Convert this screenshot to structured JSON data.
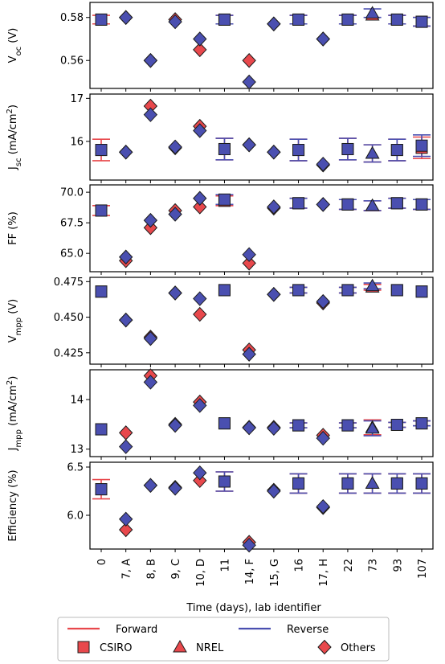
{
  "colors": {
    "forward": "#e8484c",
    "reverse": "#4a4fb0",
    "marker_edge": "#1c1c1c",
    "legend_border": "#bbbbbb"
  },
  "chart_data": {
    "type": "scatter",
    "xlabel": "Time (days), lab identifier",
    "categories": [
      "0",
      "7, A",
      "8, B",
      "9, C",
      "10, D",
      "11",
      "14, F",
      "15, G",
      "16",
      "17, H",
      "22",
      "73",
      "93",
      "107"
    ],
    "marker_by_category": [
      "square",
      "diamond",
      "diamond",
      "diamond",
      "diamond",
      "square",
      "diamond",
      "diamond",
      "square",
      "diamond",
      "square",
      "triangle",
      "square",
      "square"
    ],
    "legend": {
      "lines": [
        "Forward",
        "Reverse"
      ],
      "markers": [
        {
          "label": "CSIRO",
          "shape": "square"
        },
        {
          "label": "NREL",
          "shape": "triangle"
        },
        {
          "label": "Others",
          "shape": "diamond"
        }
      ]
    },
    "panels": [
      {
        "ylabel": "V",
        "ylabel_sub": "oc",
        "ylabel_rest": " (V)",
        "ylim": [
          0.547,
          0.587
        ],
        "yticks": [
          0.56,
          0.58
        ],
        "ytick_labels": [
          "0.56",
          "0.58"
        ],
        "series": [
          {
            "name": "Forward",
            "values": [
              0.579,
              0.58,
              0.56,
              0.579,
              0.565,
              0.579,
              0.56,
              0.577,
              0.579,
              0.57,
              0.579,
              0.581,
              0.579,
              0.578
            ],
            "errors": [
              0.002,
              0,
              0,
              0,
              0,
              0.002,
              0,
              0,
              0.002,
              0,
              0.002,
              0,
              0.002,
              0.002
            ]
          },
          {
            "name": "Reverse",
            "values": [
              0.579,
              0.58,
              0.56,
              0.578,
              0.57,
              0.579,
              0.55,
              0.577,
              0.579,
              0.57,
              0.579,
              0.582,
              0.579,
              0.578
            ],
            "errors": [
              0,
              0,
              0,
              0,
              0,
              0.002,
              0,
              0,
              0.002,
              0,
              0.002,
              0.002,
              0.002,
              0.002
            ]
          }
        ]
      },
      {
        "ylabel": "J",
        "ylabel_sub": "sc",
        "ylabel_rest": " (mA/cm",
        "ylabel_sup": "2",
        "ylabel_end": ")",
        "ylim": [
          15.1,
          17.1
        ],
        "yticks": [
          16,
          17
        ],
        "ytick_labels": [
          "16",
          "17"
        ],
        "series": [
          {
            "name": "Forward",
            "values": [
              15.8,
              15.75,
              16.82,
              15.85,
              16.35,
              15.82,
              15.92,
              15.75,
              15.8,
              15.45,
              15.82,
              15.72,
              15.8,
              15.85
            ],
            "errors": [
              0.25,
              0,
              0,
              0,
              0,
              0.25,
              0,
              0,
              0.25,
              0,
              0.25,
              0.2,
              0.25,
              0.25
            ]
          },
          {
            "name": "Reverse",
            "values": [
              15.8,
              15.75,
              16.62,
              15.87,
              16.25,
              15.82,
              15.92,
              15.75,
              15.8,
              15.47,
              15.82,
              15.72,
              15.8,
              15.9
            ],
            "errors": [
              0,
              0,
              0,
              0,
              0,
              0.25,
              0,
              0,
              0.25,
              0,
              0.25,
              0.2,
              0.25,
              0.25
            ]
          }
        ]
      },
      {
        "ylabel": "FF (%)",
        "ylim": [
          63.5,
          70.6
        ],
        "yticks": [
          65.0,
          67.5,
          70.0
        ],
        "ytick_labels": [
          "65.0",
          "67.5",
          "70.0"
        ],
        "series": [
          {
            "name": "Forward",
            "values": [
              68.5,
              64.4,
              67.1,
              68.5,
              68.8,
              69.3,
              64.2,
              68.7,
              69.1,
              69.0,
              69.0,
              68.9,
              69.1,
              69.0
            ],
            "errors": [
              0.4,
              0,
              0,
              0,
              0,
              0.4,
              0,
              0,
              0.4,
              0,
              0.4,
              0.4,
              0.4,
              0.4
            ]
          },
          {
            "name": "Reverse",
            "values": [
              68.5,
              64.7,
              67.7,
              68.2,
              69.5,
              69.4,
              64.9,
              68.8,
              69.1,
              69.0,
              69.0,
              68.9,
              69.1,
              69.0
            ],
            "errors": [
              0,
              0,
              0,
              0,
              0,
              0.4,
              0,
              0,
              0.4,
              0,
              0.4,
              0.4,
              0.4,
              0.4
            ]
          }
        ]
      },
      {
        "ylabel": "V",
        "ylabel_sub": "mpp",
        "ylabel_rest": " (V)",
        "ylim": [
          0.417,
          0.478
        ],
        "yticks": [
          0.425,
          0.45,
          0.475
        ],
        "ytick_labels": [
          "0.425",
          "0.450",
          "0.475"
        ],
        "series": [
          {
            "name": "Forward",
            "values": [
              0.468,
              0.448,
              0.436,
              0.467,
              0.452,
              0.469,
              0.427,
              0.466,
              0.469,
              0.46,
              0.469,
              0.471,
              0.469,
              0.468
            ],
            "errors": [
              0,
              0,
              0,
              0,
              0,
              0,
              0,
              0,
              0.002,
              0,
              0.002,
              0.002,
              0,
              0
            ]
          },
          {
            "name": "Reverse",
            "values": [
              0.468,
              0.448,
              0.435,
              0.467,
              0.463,
              0.469,
              0.424,
              0.466,
              0.469,
              0.461,
              0.469,
              0.472,
              0.469,
              0.468
            ],
            "errors": [
              0,
              0,
              0,
              0,
              0,
              0,
              0,
              0,
              0.002,
              0,
              0.002,
              0.002,
              0,
              0
            ]
          }
        ]
      },
      {
        "ylabel": "J",
        "ylabel_sub": "mpp",
        "ylabel_rest": " (mA/cm",
        "ylabel_sup": "2",
        "ylabel_end": ")",
        "ylim": [
          12.85,
          14.6
        ],
        "yticks": [
          13,
          14
        ],
        "ytick_labels": [
          "13",
          "14"
        ],
        "series": [
          {
            "name": "Forward",
            "values": [
              13.4,
              13.33,
              14.48,
              13.5,
              13.95,
              13.52,
              13.44,
              13.44,
              13.48,
              13.28,
              13.48,
              13.44,
              13.49,
              13.52
            ],
            "errors": [
              0,
              0,
              0,
              0,
              0,
              0,
              0,
              0,
              0.05,
              0,
              0.05,
              0.15,
              0.05,
              0.05
            ]
          },
          {
            "name": "Reverse",
            "values": [
              13.4,
              13.05,
              14.35,
              13.48,
              13.88,
              13.52,
              13.43,
              13.42,
              13.48,
              13.22,
              13.48,
              13.42,
              13.49,
              13.52
            ],
            "errors": [
              0,
              0,
              0,
              0,
              0,
              0,
              0,
              0,
              0.05,
              0,
              0.05,
              0.15,
              0.05,
              0.05
            ]
          }
        ]
      },
      {
        "ylabel": "Efficiency (%)",
        "ylim": [
          5.65,
          6.55
        ],
        "yticks": [
          6.0,
          6.5
        ],
        "ytick_labels": [
          "6.0",
          "6.5"
        ],
        "series": [
          {
            "name": "Forward",
            "values": [
              6.27,
              5.85,
              6.31,
              6.29,
              6.36,
              6.35,
              5.72,
              6.26,
              6.33,
              6.08,
              6.33,
              6.33,
              6.33,
              6.33
            ],
            "errors": [
              0.1,
              0,
              0,
              0,
              0,
              0.1,
              0,
              0,
              0.1,
              0,
              0.1,
              0.1,
              0.1,
              0.1
            ]
          },
          {
            "name": "Reverse",
            "values": [
              6.27,
              5.96,
              6.31,
              6.28,
              6.44,
              6.35,
              5.69,
              6.25,
              6.33,
              6.09,
              6.33,
              6.33,
              6.33,
              6.33
            ],
            "errors": [
              0,
              0,
              0,
              0,
              0,
              0.1,
              0,
              0,
              0.1,
              0,
              0.1,
              0.1,
              0.1,
              0.1
            ]
          }
        ]
      }
    ]
  }
}
